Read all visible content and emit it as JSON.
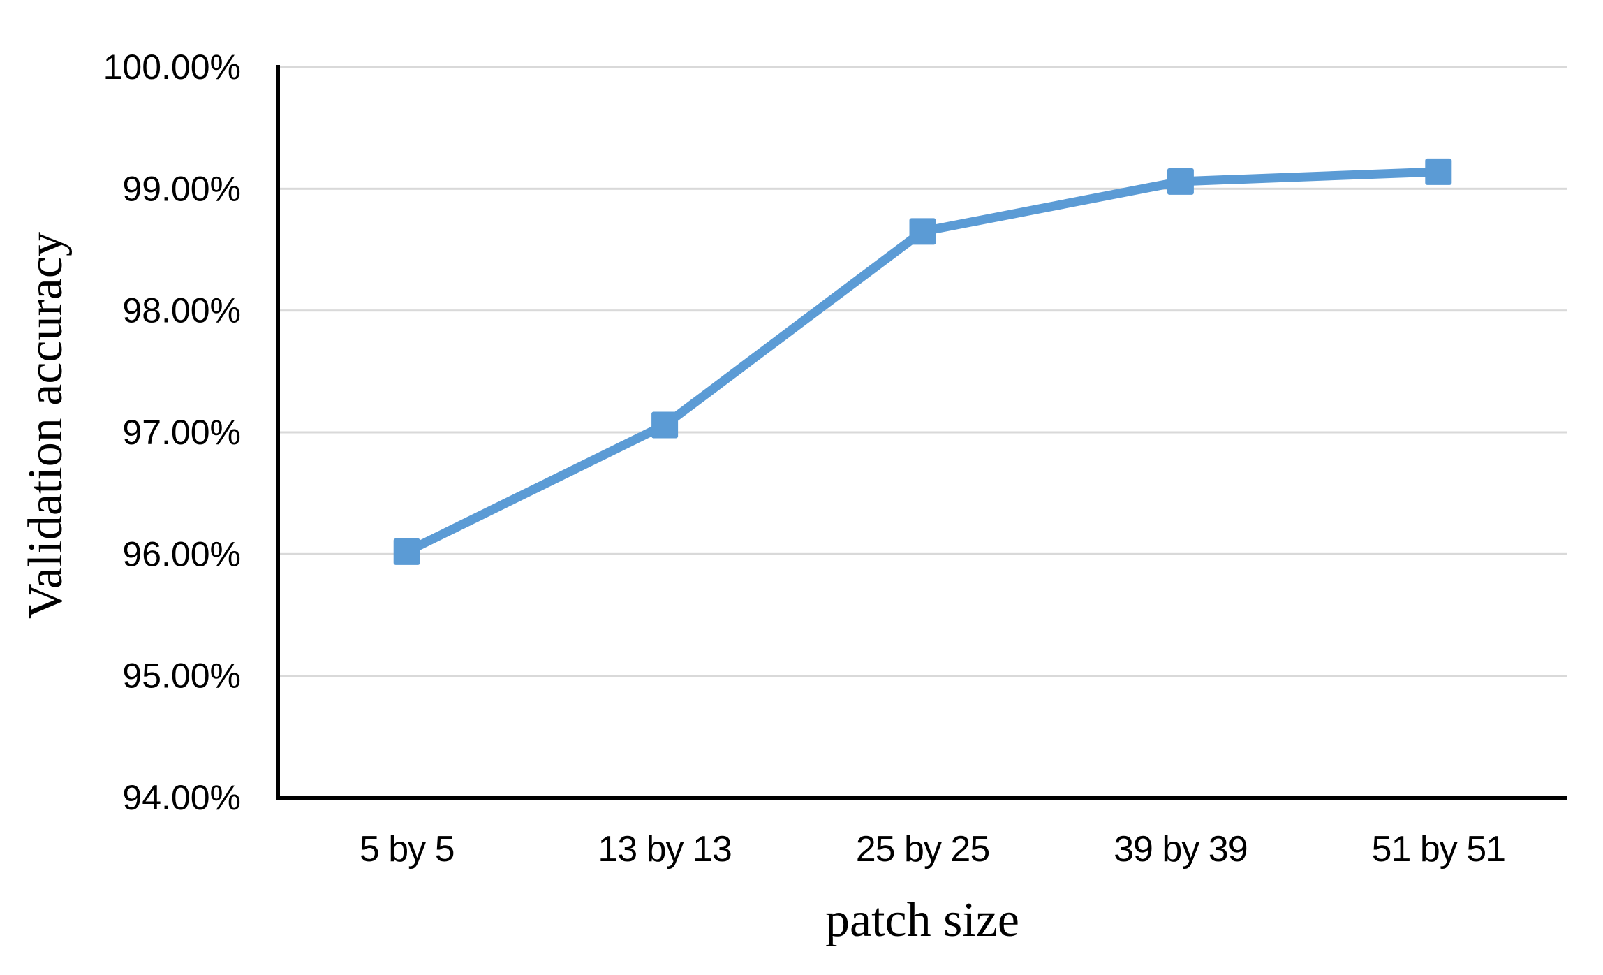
{
  "chart_data": {
    "type": "line",
    "title": "",
    "xlabel": "patch size",
    "ylabel": "Validation accuracy",
    "categories": [
      "5 by 5",
      "13 by 13",
      "25 by 25",
      "39 by 39",
      "51 by 51"
    ],
    "series": [
      {
        "name": "Validation accuracy",
        "values": [
          96.02,
          97.06,
          98.65,
          99.06,
          99.14
        ]
      }
    ],
    "ylim": [
      94,
      100
    ],
    "ytick_step": 1,
    "ytick_labels": [
      "94.00%",
      "95.00%",
      "96.00%",
      "97.00%",
      "98.00%",
      "99.00%",
      "100.00%"
    ],
    "grid": "horizontal-only",
    "legend": "none",
    "marker": "square",
    "colors": {
      "line": "#5B9BD5",
      "marker": "#5B9BD5",
      "gridline": "#D9D9D9",
      "axis": "#000000",
      "text": "#000000"
    }
  }
}
